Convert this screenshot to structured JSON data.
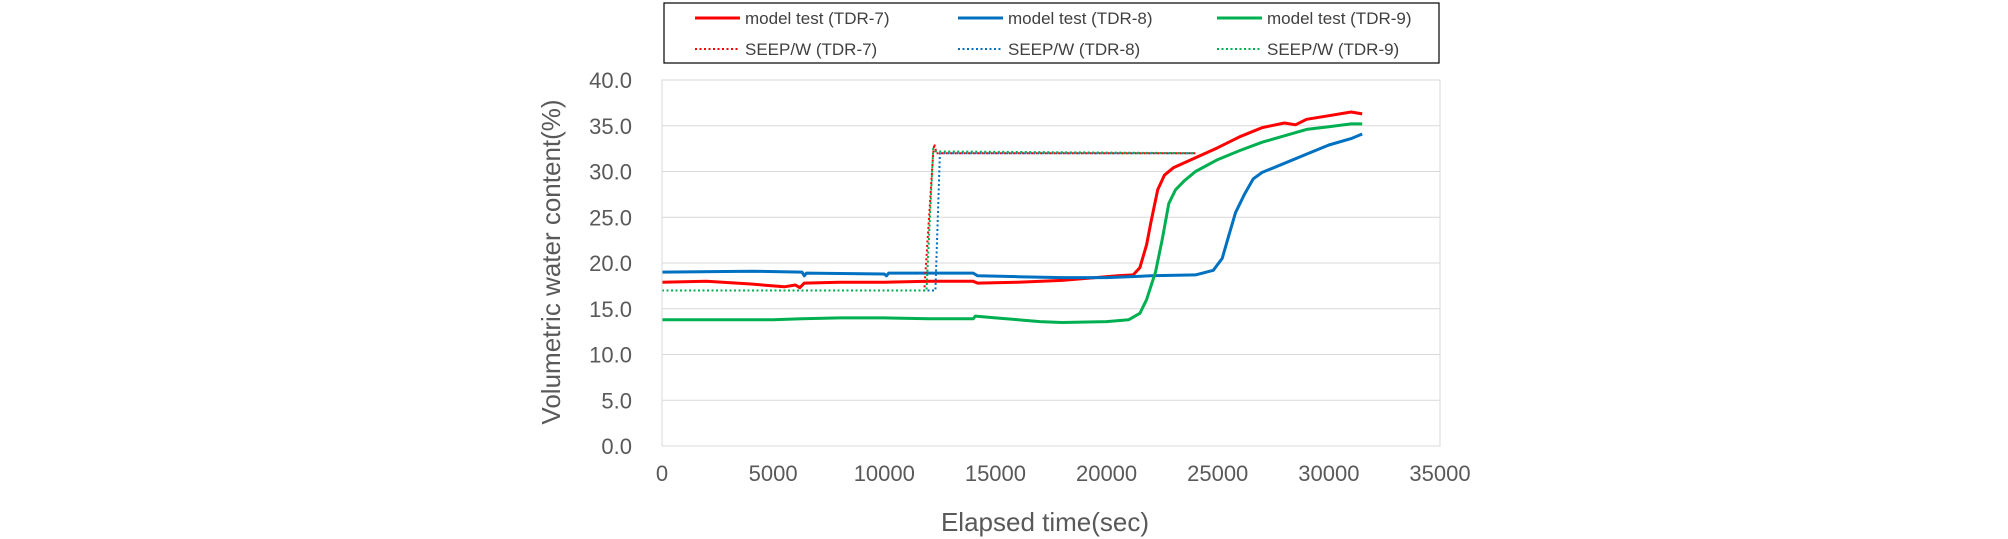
{
  "chart_data": {
    "type": "line",
    "title": "",
    "xlabel": "Elapsed time(sec)",
    "ylabel": "Volumetric water content(%)",
    "xlim": [
      0,
      35000
    ],
    "ylim": [
      0,
      40
    ],
    "x_ticks": [
      "0",
      "5000",
      "10000",
      "15000",
      "20000",
      "25000",
      "30000",
      "35000"
    ],
    "y_ticks": [
      "0.0",
      "5.0",
      "10.0",
      "15.0",
      "20.0",
      "25.0",
      "30.0",
      "35.0",
      "40.0"
    ],
    "grid": true,
    "legend_position": "top",
    "series": [
      {
        "name": "model test (TDR-7)",
        "color": "#ff0000",
        "style": "solid",
        "points": [
          [
            0,
            17.9
          ],
          [
            2000,
            18.0
          ],
          [
            4000,
            17.7
          ],
          [
            5000,
            17.5
          ],
          [
            5500,
            17.4
          ],
          [
            6000,
            17.6
          ],
          [
            6200,
            17.3
          ],
          [
            6400,
            17.8
          ],
          [
            8000,
            17.9
          ],
          [
            10000,
            17.9
          ],
          [
            12000,
            18.0
          ],
          [
            14000,
            18.0
          ],
          [
            14200,
            17.8
          ],
          [
            16000,
            17.9
          ],
          [
            18000,
            18.1
          ],
          [
            19500,
            18.4
          ],
          [
            20500,
            18.6
          ],
          [
            21200,
            18.7
          ],
          [
            21500,
            19.5
          ],
          [
            21800,
            22.0
          ],
          [
            22000,
            24.5
          ],
          [
            22300,
            28.0
          ],
          [
            22600,
            29.6
          ],
          [
            23000,
            30.4
          ],
          [
            24000,
            31.5
          ],
          [
            25000,
            32.6
          ],
          [
            26000,
            33.8
          ],
          [
            27000,
            34.8
          ],
          [
            28000,
            35.3
          ],
          [
            28500,
            35.1
          ],
          [
            29000,
            35.7
          ],
          [
            30000,
            36.1
          ],
          [
            31000,
            36.5
          ],
          [
            31500,
            36.3
          ]
        ]
      },
      {
        "name": "model test (TDR-8)",
        "color": "#0070c0",
        "style": "solid",
        "points": [
          [
            0,
            19.0
          ],
          [
            4000,
            19.1
          ],
          [
            6300,
            19.0
          ],
          [
            6400,
            18.6
          ],
          [
            6500,
            18.9
          ],
          [
            10000,
            18.8
          ],
          [
            10100,
            18.6
          ],
          [
            10200,
            18.9
          ],
          [
            14000,
            18.9
          ],
          [
            14200,
            18.6
          ],
          [
            16000,
            18.5
          ],
          [
            18000,
            18.4
          ],
          [
            20000,
            18.4
          ],
          [
            22000,
            18.6
          ],
          [
            24000,
            18.7
          ],
          [
            24800,
            19.2
          ],
          [
            25200,
            20.5
          ],
          [
            25500,
            23.0
          ],
          [
            25800,
            25.5
          ],
          [
            26200,
            27.5
          ],
          [
            26600,
            29.2
          ],
          [
            27000,
            29.9
          ],
          [
            28000,
            30.9
          ],
          [
            29000,
            31.9
          ],
          [
            30000,
            32.9
          ],
          [
            31000,
            33.6
          ],
          [
            31500,
            34.1
          ]
        ]
      },
      {
        "name": "model test (TDR-9)",
        "color": "#00b050",
        "style": "solid",
        "points": [
          [
            0,
            13.8
          ],
          [
            5000,
            13.8
          ],
          [
            6300,
            13.9
          ],
          [
            8000,
            14.0
          ],
          [
            10000,
            14.0
          ],
          [
            12000,
            13.9
          ],
          [
            14000,
            13.9
          ],
          [
            14100,
            14.2
          ],
          [
            15000,
            14.0
          ],
          [
            16000,
            13.8
          ],
          [
            17000,
            13.6
          ],
          [
            18000,
            13.5
          ],
          [
            20000,
            13.6
          ],
          [
            21000,
            13.8
          ],
          [
            21500,
            14.5
          ],
          [
            21800,
            16.0
          ],
          [
            22200,
            19.0
          ],
          [
            22500,
            22.5
          ],
          [
            22800,
            26.5
          ],
          [
            23100,
            28.0
          ],
          [
            23500,
            29.0
          ],
          [
            24000,
            30.0
          ],
          [
            25000,
            31.3
          ],
          [
            26000,
            32.3
          ],
          [
            27000,
            33.2
          ],
          [
            28000,
            33.9
          ],
          [
            29000,
            34.6
          ],
          [
            30000,
            34.9
          ],
          [
            31000,
            35.2
          ],
          [
            31500,
            35.2
          ]
        ]
      },
      {
        "name": "SEEP/W (TDR-7)",
        "color": "#ff0000",
        "style": "dotted",
        "points": [
          [
            0,
            17.0
          ],
          [
            11800,
            17.0
          ],
          [
            12200,
            32.0
          ],
          [
            12250,
            33.0
          ],
          [
            12350,
            32.0
          ],
          [
            24000,
            32.0
          ]
        ]
      },
      {
        "name": "SEEP/W (TDR-8)",
        "color": "#0070c0",
        "style": "dotted",
        "points": [
          [
            0,
            17.0
          ],
          [
            12300,
            17.0
          ],
          [
            12500,
            32.0
          ],
          [
            24000,
            32.0
          ]
        ]
      },
      {
        "name": "SEEP/W (TDR-9)",
        "color": "#00b050",
        "style": "dotted",
        "points": [
          [
            0,
            17.0
          ],
          [
            11900,
            17.0
          ],
          [
            12200,
            32.5
          ],
          [
            12300,
            32.2
          ],
          [
            24000,
            32.0
          ]
        ]
      }
    ]
  }
}
